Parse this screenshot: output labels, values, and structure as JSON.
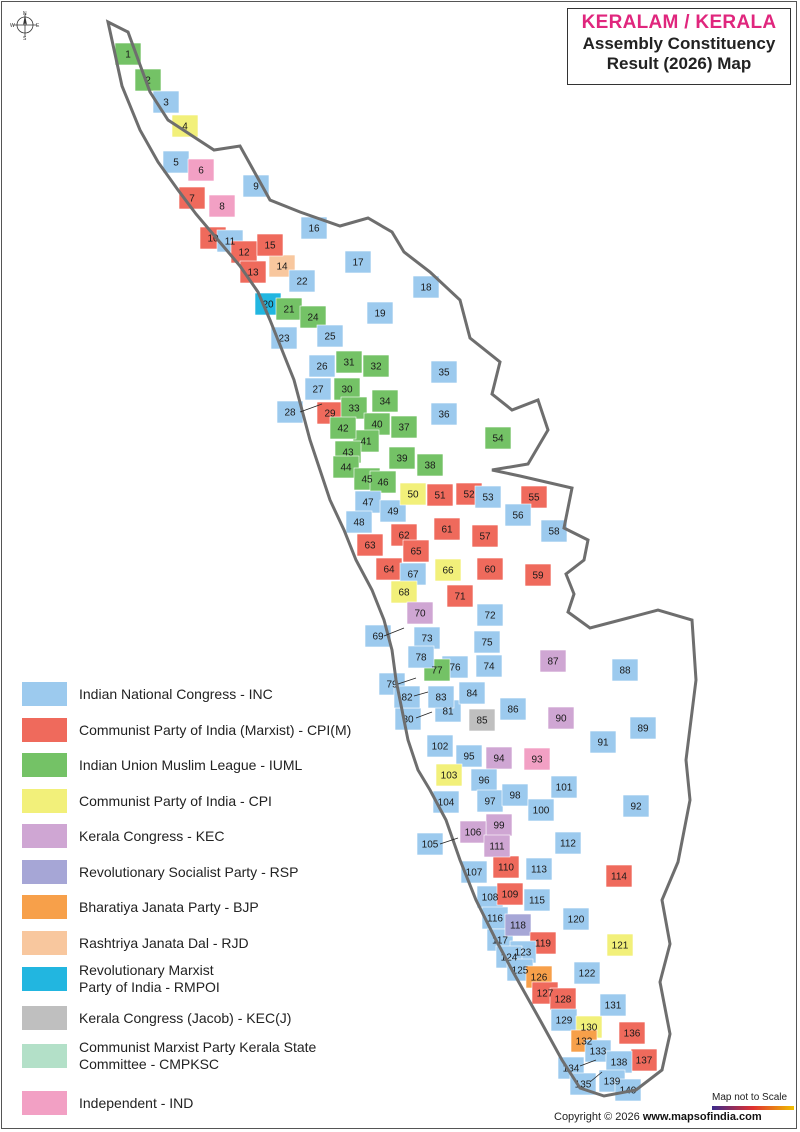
{
  "title": {
    "line1": "KERALAM / KERALA",
    "line2": "Assembly Constituency",
    "line3": "Result (2026) Map"
  },
  "compass": {
    "icon": "compass-rose-icon",
    "labels": [
      "N",
      "E",
      "S",
      "W"
    ]
  },
  "colors": {
    "INC": "#9ccaee",
    "CPIM": "#ef6a5c",
    "IUML": "#74c266",
    "CPI": "#f2f07a",
    "KEC": "#cfa6d3",
    "RSP": "#a6a6d6",
    "BJP": "#f7a04a",
    "RJD": "#f8c79e",
    "RMPOI": "#22b6e0",
    "KECJ": "#bfbfbf",
    "CMPKSC": "#b3e0c8",
    "IND": "#f2a0c4",
    "border": "#7a7a7a",
    "outline": "#6e6e6e"
  },
  "legend": [
    {
      "key": "INC",
      "label": "Indian National Congress - INC"
    },
    {
      "key": "CPIM",
      "label": "Communist Party of India (Marxist) - CPI(M)"
    },
    {
      "key": "IUML",
      "label": "Indian Union Muslim League - IUML"
    },
    {
      "key": "CPI",
      "label": "Communist Party of India - CPI"
    },
    {
      "key": "KEC",
      "label": "Kerala Congress - KEC"
    },
    {
      "key": "RSP",
      "label": "Revolutionary Socialist Party - RSP"
    },
    {
      "key": "BJP",
      "label": "Bharatiya Janata Party - BJP"
    },
    {
      "key": "RJD",
      "label": "Rashtriya Janata Dal - RJD"
    },
    {
      "key": "RMPOI",
      "label": "Revolutionary Marxist",
      "label2": "Party of India - RMPOI"
    },
    {
      "key": "KECJ",
      "label": "Kerala Congress (Jacob) - KEC(J)"
    },
    {
      "key": "CMPKSC",
      "label": "Communist Marxist Party Kerala State",
      "label2": "Committee - CMPKSC"
    },
    {
      "key": "IND",
      "label": "Independent - IND"
    }
  ],
  "constituencies": [
    {
      "n": "1",
      "p": "IUML"
    },
    {
      "n": "2",
      "p": "IUML"
    },
    {
      "n": "3",
      "p": "INC"
    },
    {
      "n": "4",
      "p": "CPI"
    },
    {
      "n": "5",
      "p": "INC"
    },
    {
      "n": "6",
      "p": "IND"
    },
    {
      "n": "7",
      "p": "CPIM"
    },
    {
      "n": "8",
      "p": "IND"
    },
    {
      "n": "9",
      "p": "INC"
    },
    {
      "n": "10",
      "p": "CPIM"
    },
    {
      "n": "11",
      "p": "INC"
    },
    {
      "n": "12",
      "p": "CPIM"
    },
    {
      "n": "13",
      "p": "CPIM"
    },
    {
      "n": "14",
      "p": "RJD"
    },
    {
      "n": "15",
      "p": "CPIM"
    },
    {
      "n": "16",
      "p": "INC"
    },
    {
      "n": "17",
      "p": "INC"
    },
    {
      "n": "18",
      "p": "INC"
    },
    {
      "n": "19",
      "p": "INC"
    },
    {
      "n": "20",
      "p": "RMPOI"
    },
    {
      "n": "21",
      "p": "IUML"
    },
    {
      "n": "22",
      "p": "INC"
    },
    {
      "n": "23",
      "p": "INC"
    },
    {
      "n": "24",
      "p": "IUML"
    },
    {
      "n": "25",
      "p": "INC"
    },
    {
      "n": "26",
      "p": "INC"
    },
    {
      "n": "27",
      "p": "INC"
    },
    {
      "n": "28",
      "p": "INC"
    },
    {
      "n": "29",
      "p": "CPIM"
    },
    {
      "n": "30",
      "p": "IUML"
    },
    {
      "n": "31",
      "p": "IUML"
    },
    {
      "n": "32",
      "p": "IUML"
    },
    {
      "n": "33",
      "p": "IUML"
    },
    {
      "n": "34",
      "p": "IUML"
    },
    {
      "n": "35",
      "p": "INC"
    },
    {
      "n": "36",
      "p": "INC"
    },
    {
      "n": "37",
      "p": "IUML"
    },
    {
      "n": "38",
      "p": "IUML"
    },
    {
      "n": "39",
      "p": "IUML"
    },
    {
      "n": "40",
      "p": "IUML"
    },
    {
      "n": "41",
      "p": "IUML"
    },
    {
      "n": "42",
      "p": "IUML"
    },
    {
      "n": "43",
      "p": "IUML"
    },
    {
      "n": "44",
      "p": "IUML"
    },
    {
      "n": "45",
      "p": "IUML"
    },
    {
      "n": "46",
      "p": "IUML"
    },
    {
      "n": "47",
      "p": "INC"
    },
    {
      "n": "48",
      "p": "INC"
    },
    {
      "n": "49",
      "p": "INC"
    },
    {
      "n": "50",
      "p": "CPI"
    },
    {
      "n": "51",
      "p": "CPIM"
    },
    {
      "n": "52",
      "p": "CPIM"
    },
    {
      "n": "53",
      "p": "INC"
    },
    {
      "n": "54",
      "p": "IUML"
    },
    {
      "n": "55",
      "p": "CPIM"
    },
    {
      "n": "56",
      "p": "INC"
    },
    {
      "n": "57",
      "p": "CPIM"
    },
    {
      "n": "58",
      "p": "INC"
    },
    {
      "n": "59",
      "p": "CPIM"
    },
    {
      "n": "60",
      "p": "CPIM"
    },
    {
      "n": "61",
      "p": "CPIM"
    },
    {
      "n": "62",
      "p": "CPIM"
    },
    {
      "n": "63",
      "p": "CPIM"
    },
    {
      "n": "64",
      "p": "CPIM"
    },
    {
      "n": "65",
      "p": "CPIM"
    },
    {
      "n": "66",
      "p": "CPI"
    },
    {
      "n": "67",
      "p": "INC"
    },
    {
      "n": "68",
      "p": "CPI"
    },
    {
      "n": "69",
      "p": "INC"
    },
    {
      "n": "70",
      "p": "KEC"
    },
    {
      "n": "71",
      "p": "CPIM"
    },
    {
      "n": "72",
      "p": "INC"
    },
    {
      "n": "73",
      "p": "INC"
    },
    {
      "n": "74",
      "p": "INC"
    },
    {
      "n": "75",
      "p": "INC"
    },
    {
      "n": "76",
      "p": "INC"
    },
    {
      "n": "77",
      "p": "IUML"
    },
    {
      "n": "78",
      "p": "INC"
    },
    {
      "n": "79",
      "p": "INC"
    },
    {
      "n": "80",
      "p": "INC"
    },
    {
      "n": "81",
      "p": "INC"
    },
    {
      "n": "82",
      "p": "INC"
    },
    {
      "n": "83",
      "p": "INC"
    },
    {
      "n": "84",
      "p": "INC"
    },
    {
      "n": "85",
      "p": "KECJ"
    },
    {
      "n": "86",
      "p": "INC"
    },
    {
      "n": "87",
      "p": "KEC"
    },
    {
      "n": "88",
      "p": "INC"
    },
    {
      "n": "89",
      "p": "INC"
    },
    {
      "n": "90",
      "p": "KEC"
    },
    {
      "n": "91",
      "p": "INC"
    },
    {
      "n": "92",
      "p": "INC"
    },
    {
      "n": "93",
      "p": "IND"
    },
    {
      "n": "94",
      "p": "KEC"
    },
    {
      "n": "95",
      "p": "INC"
    },
    {
      "n": "96",
      "p": "INC"
    },
    {
      "n": "97",
      "p": "INC"
    },
    {
      "n": "98",
      "p": "INC"
    },
    {
      "n": "99",
      "p": "KEC"
    },
    {
      "n": "100",
      "p": "INC"
    },
    {
      "n": "101",
      "p": "INC"
    },
    {
      "n": "102",
      "p": "INC"
    },
    {
      "n": "103",
      "p": "CPI"
    },
    {
      "n": "104",
      "p": "INC"
    },
    {
      "n": "105",
      "p": "INC"
    },
    {
      "n": "106",
      "p": "KEC"
    },
    {
      "n": "107",
      "p": "INC"
    },
    {
      "n": "108",
      "p": "INC"
    },
    {
      "n": "109",
      "p": "CPIM"
    },
    {
      "n": "110",
      "p": "CPIM"
    },
    {
      "n": "111",
      "p": "KEC"
    },
    {
      "n": "112",
      "p": "INC"
    },
    {
      "n": "113",
      "p": "INC"
    },
    {
      "n": "114",
      "p": "CPIM"
    },
    {
      "n": "115",
      "p": "INC"
    },
    {
      "n": "116",
      "p": "INC"
    },
    {
      "n": "117",
      "p": "INC"
    },
    {
      "n": "118",
      "p": "RSP"
    },
    {
      "n": "119",
      "p": "CPIM"
    },
    {
      "n": "120",
      "p": "INC"
    },
    {
      "n": "121",
      "p": "CPI"
    },
    {
      "n": "122",
      "p": "INC"
    },
    {
      "n": "123",
      "p": "INC"
    },
    {
      "n": "124",
      "p": "INC"
    },
    {
      "n": "125",
      "p": "INC"
    },
    {
      "n": "126",
      "p": "BJP"
    },
    {
      "n": "127",
      "p": "CPIM"
    },
    {
      "n": "128",
      "p": "CPIM"
    },
    {
      "n": "129",
      "p": "INC"
    },
    {
      "n": "130",
      "p": "CPI"
    },
    {
      "n": "131",
      "p": "INC"
    },
    {
      "n": "132",
      "p": "BJP"
    },
    {
      "n": "133",
      "p": "INC"
    },
    {
      "n": "134",
      "p": "INC"
    },
    {
      "n": "135",
      "p": "INC"
    },
    {
      "n": "136",
      "p": "CPIM"
    },
    {
      "n": "137",
      "p": "CPIM"
    },
    {
      "n": "138",
      "p": "INC"
    },
    {
      "n": "139",
      "p": "INC"
    },
    {
      "n": "140",
      "p": "INC"
    }
  ],
  "note": "Map not to Scale",
  "copyright_prefix": "Copyright © 2026 ",
  "copyright_site": "www.mapsofindia.com"
}
